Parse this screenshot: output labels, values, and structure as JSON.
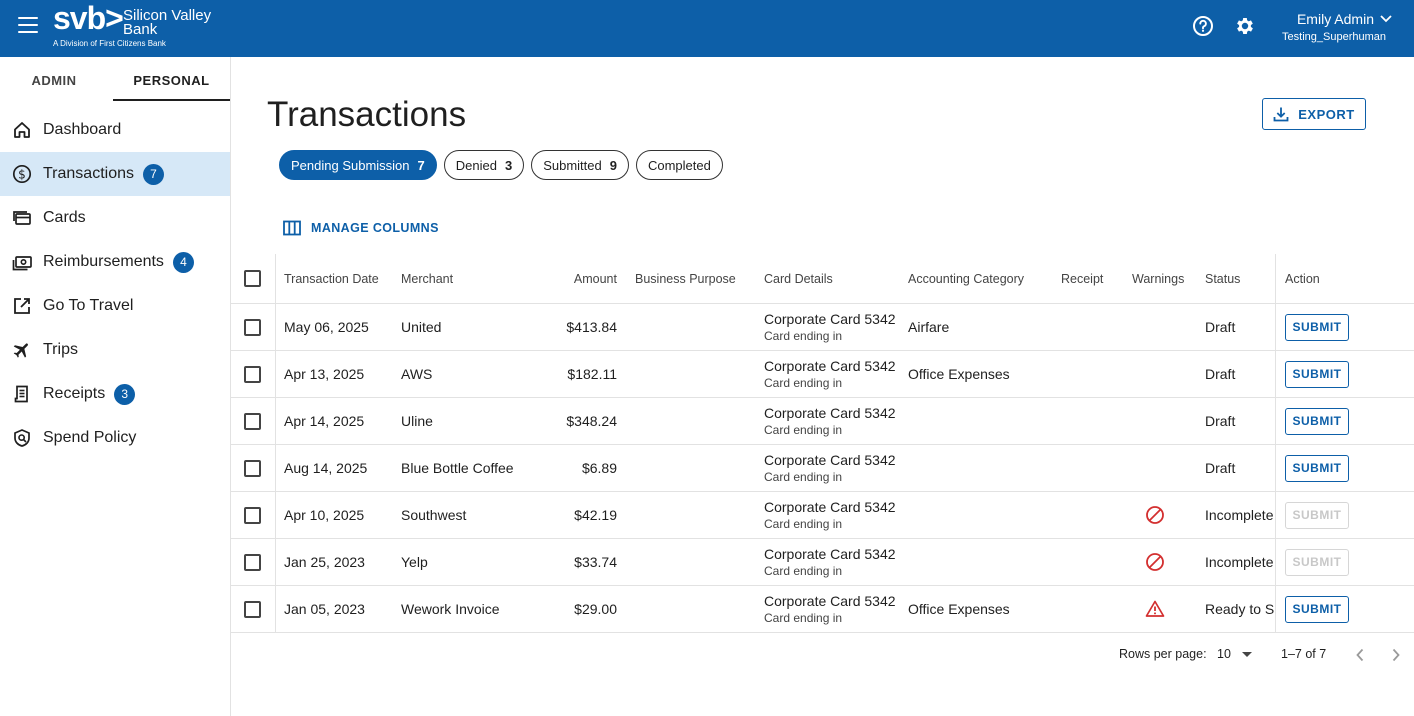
{
  "header": {
    "brand": "svb>",
    "bank_line1": "Silicon Valley",
    "bank_line2": "Bank",
    "division": "A Division of First Citizens Bank",
    "user_name": "Emily Admin",
    "user_org": "Testing_Superhuman",
    "icons": [
      "menu-icon",
      "help-icon",
      "gear-icon",
      "chevron-down-icon"
    ]
  },
  "sidebar": {
    "tabs": [
      {
        "label": "ADMIN"
      },
      {
        "label": "PERSONAL"
      }
    ],
    "items": [
      {
        "label": "Dashboard",
        "icon": "home-icon",
        "badge": ""
      },
      {
        "label": "Transactions",
        "icon": "dollar-circle-icon",
        "badge": "7"
      },
      {
        "label": "Cards",
        "icon": "cards-icon",
        "badge": ""
      },
      {
        "label": "Reimbursements",
        "icon": "cash-icon",
        "badge": "4"
      },
      {
        "label": "Go To Travel",
        "icon": "external-link-icon",
        "badge": ""
      },
      {
        "label": "Trips",
        "icon": "airplane-icon",
        "badge": ""
      },
      {
        "label": "Receipts",
        "icon": "receipt-icon",
        "badge": "3"
      },
      {
        "label": "Spend Policy",
        "icon": "policy-shield-icon",
        "badge": ""
      }
    ]
  },
  "main": {
    "title": "Transactions",
    "export_label": "EXPORT",
    "chips": [
      {
        "label": "Pending Submission",
        "count": "7"
      },
      {
        "label": "Denied",
        "count": "3"
      },
      {
        "label": "Submitted",
        "count": "9"
      },
      {
        "label": "Completed",
        "count": ""
      }
    ],
    "manage_columns": "MANAGE COLUMNS"
  },
  "table": {
    "columns": [
      "Transaction Date",
      "Merchant",
      "Amount",
      "Business Purpose",
      "Card Details",
      "Accounting Category",
      "Receipt",
      "Warnings",
      "Status",
      "Action"
    ],
    "rows": [
      {
        "date": "May 06, 2025",
        "merchant": "United",
        "amount": "$413.84",
        "purpose": "",
        "card": "Corporate Card 5342",
        "card_sub": "Card ending in",
        "category": "Airfare",
        "receipt": "",
        "warning": "",
        "status": "Draft",
        "action": "SUBMIT"
      },
      {
        "date": "Apr 13, 2025",
        "merchant": "AWS",
        "amount": "$182.11",
        "purpose": "",
        "card": "Corporate Card 5342",
        "card_sub": "Card ending in",
        "category": "Office Expenses",
        "receipt": "",
        "warning": "",
        "status": "Draft",
        "action": "SUBMIT"
      },
      {
        "date": "Apr 14, 2025",
        "merchant": "Uline",
        "amount": "$348.24",
        "purpose": "",
        "card": "Corporate Card 5342",
        "card_sub": "Card ending in",
        "category": "",
        "receipt": "",
        "warning": "",
        "status": "Draft",
        "action": "SUBMIT"
      },
      {
        "date": "Aug 14, 2025",
        "merchant": "Blue Bottle Coffee",
        "amount": "$6.89",
        "purpose": "",
        "card": "Corporate Card 5342",
        "card_sub": "Card ending in",
        "category": "",
        "receipt": "",
        "warning": "",
        "status": "Draft",
        "action": "SUBMIT"
      },
      {
        "date": "Apr 10, 2025",
        "merchant": "Southwest",
        "amount": "$42.19",
        "purpose": "",
        "card": "Corporate Card 5342",
        "card_sub": "Card ending in",
        "category": "",
        "receipt": "",
        "warning": "blocked-icon",
        "status": "Incomplete",
        "action": "SUBMIT",
        "action_disabled": true
      },
      {
        "date": "Jan 25, 2023",
        "merchant": "Yelp",
        "amount": "$33.74",
        "purpose": "",
        "card": "Corporate Card 5342",
        "card_sub": "Card ending in",
        "category": "",
        "receipt": "",
        "warning": "blocked-icon",
        "status": "Incomplete",
        "action": "SUBMIT",
        "action_disabled": true
      },
      {
        "date": "Jan 05, 2023",
        "merchant": "Wework Invoice",
        "amount": "$29.00",
        "purpose": "",
        "card": "Corporate Card 5342",
        "card_sub": "Card ending in",
        "category": "Office Expenses",
        "receipt": "",
        "warning": "warning-triangle-icon",
        "status": "Ready to Su",
        "action": "SUBMIT"
      }
    ]
  },
  "pagination": {
    "rows_per_page_label": "Rows per page:",
    "rows_per_page": "10",
    "range": "1–7 of 7"
  },
  "colors": {
    "brand_blue": "#0d5fa8",
    "active_nav_bg": "#d6e8f7",
    "warning_red": "#d32f2f"
  }
}
